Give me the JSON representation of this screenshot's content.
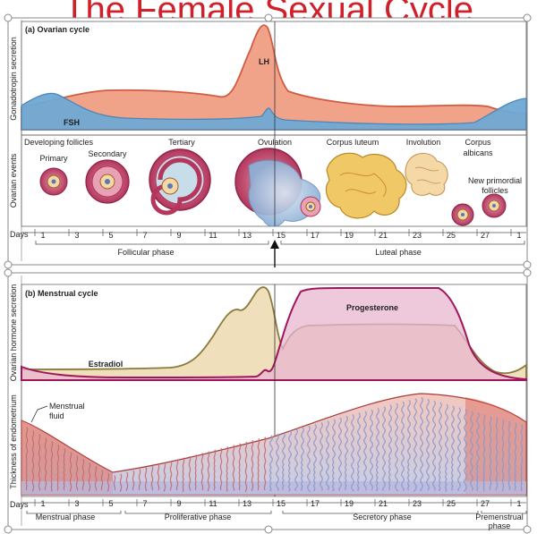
{
  "title": "The Female Sexual Cycle",
  "ovarian": {
    "heading": "(a) Ovarian cycle",
    "gonadotropin_axis": "Gonadotropin secretion",
    "events_axis": "Ovarian events",
    "lh": "LH",
    "fsh": "FSH",
    "ovulation": "Ovulation",
    "stages": {
      "developing": "Developing follicles",
      "primary": "Primary",
      "secondary": "Secondary",
      "tertiary": "Tertiary",
      "corpus_luteum": "Corpus luteum",
      "involution": "Involution",
      "corpus_albicans_1": "Corpus",
      "corpus_albicans_2": "albicans",
      "primordial_1": "New primordial",
      "primordial_2": "follicles"
    },
    "days_label": "Days",
    "days": [
      "1",
      "3",
      "5",
      "7",
      "9",
      "11",
      "13",
      "15",
      "17",
      "19",
      "21",
      "23",
      "25",
      "27",
      "1"
    ],
    "follicular_phase": "Follicular phase",
    "luteal_phase": "Luteal phase"
  },
  "menstrual": {
    "heading": "(b) Menstrual cycle",
    "hormone_axis": "Ovarian hormone secretion",
    "endometrium_axis": "Thickness of endometrium",
    "progesterone": "Progesterone",
    "estradiol": "Estradiol",
    "fluid_1": "Menstrual",
    "fluid_2": "fluid",
    "days_label": "Days",
    "days": [
      "1",
      "3",
      "5",
      "7",
      "9",
      "11",
      "13",
      "15",
      "17",
      "19",
      "21",
      "23",
      "25",
      "27",
      "1"
    ],
    "menstrual_phase": "Menstrual phase",
    "proliferative_phase": "Proliferative phase",
    "secretory_phase": "Secretory phase",
    "premenstrual_1": "Premenstrual",
    "premenstrual_2": "phase"
  },
  "colors": {
    "title": "#d0202a",
    "fsh_fill": "#6fa9d4",
    "lh_fill": "#f1a38a",
    "lh_line": "#d05c44",
    "estradiol_fill": "#efe0bb",
    "estradiol_line": "#8a7a3e",
    "progesterone_fill": "#e8b7cf",
    "progesterone_line": "#a0165e"
  }
}
